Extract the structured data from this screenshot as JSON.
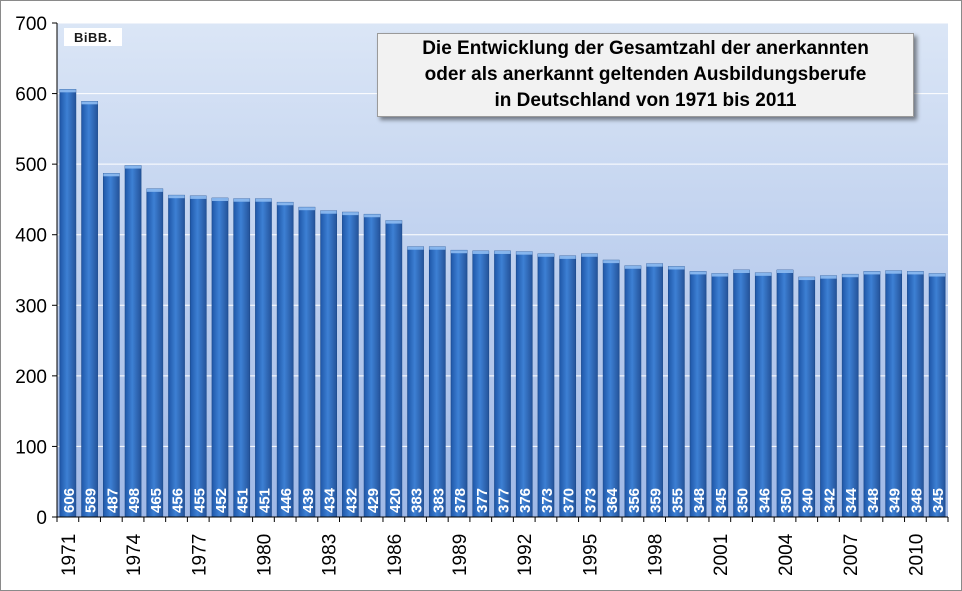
{
  "logo_text": "BiBB.",
  "colors": {
    "bar": "#2f6ec0",
    "bar_light": "#6aa0e6",
    "plot_top": "#dbe6f6",
    "plot_bottom": "#9fb8e6"
  },
  "chart_data": {
    "type": "bar",
    "title": "Die Entwicklung der Gesamtzahl der anerkannten\noder als anerkannt geltenden Ausbildungsberufe\nin Deutschland von 1971 bis 2011",
    "categories": [
      "1971",
      "1972",
      "1973",
      "1974",
      "1975",
      "1976",
      "1977",
      "1978",
      "1979",
      "1980",
      "1981",
      "1982",
      "1983",
      "1984",
      "1985",
      "1986",
      "1987",
      "1988",
      "1989",
      "1990",
      "1991",
      "1992",
      "1993",
      "1994",
      "1995",
      "1996",
      "1997",
      "1998",
      "1999",
      "2000",
      "2001",
      "2002",
      "2003",
      "2004",
      "2005",
      "2006",
      "2007",
      "2008",
      "2009",
      "2010",
      "2011"
    ],
    "values": [
      606,
      589,
      487,
      498,
      465,
      456,
      455,
      452,
      451,
      451,
      446,
      439,
      434,
      432,
      429,
      420,
      383,
      383,
      378,
      377,
      377,
      376,
      373,
      370,
      373,
      364,
      356,
      359,
      355,
      348,
      345,
      350,
      346,
      350,
      340,
      342,
      344,
      348,
      349,
      348,
      345
    ],
    "x_tick_labels": [
      "1971",
      "1974",
      "1977",
      "1980",
      "1983",
      "1986",
      "1989",
      "1992",
      "1995",
      "1998",
      "2001",
      "2004",
      "2007",
      "2010"
    ],
    "y_ticks": [
      0,
      100,
      200,
      300,
      400,
      500,
      600,
      700
    ],
    "ylim": [
      0,
      700
    ],
    "xlabel": "",
    "ylabel": "",
    "grid": true,
    "data_labels": "inside-bottom, rotated"
  }
}
